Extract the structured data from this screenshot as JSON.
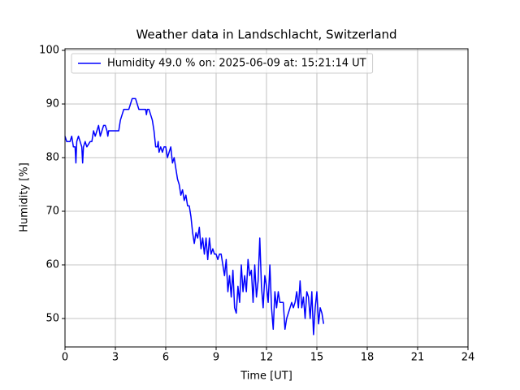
{
  "chart_data": {
    "type": "line",
    "title": "Weather data in Landschlacht, Switzerland",
    "xlabel": "Time [UT]",
    "ylabel": "Humidity [%]",
    "xlim": [
      0,
      24
    ],
    "xticks": [
      0,
      3,
      6,
      9,
      12,
      15,
      18,
      21,
      24
    ],
    "ylim": [
      44.7,
      100.3
    ],
    "yticks": [
      50,
      60,
      70,
      80,
      90,
      100
    ],
    "grid": true,
    "legend": "upper left",
    "x": [
      0.0,
      0.1,
      0.3,
      0.4,
      0.5,
      0.6,
      0.65,
      0.7,
      0.8,
      0.9,
      1.0,
      1.05,
      1.1,
      1.2,
      1.3,
      1.5,
      1.6,
      1.7,
      1.8,
      1.9,
      2.0,
      2.1,
      2.2,
      2.3,
      2.4,
      2.5,
      2.55,
      2.6,
      3.0,
      3.2,
      3.3,
      3.4,
      3.5,
      3.8,
      3.9,
      4.0,
      4.2,
      4.3,
      4.4,
      4.8,
      4.85,
      4.9,
      5.0,
      5.1,
      5.2,
      5.3,
      5.4,
      5.5,
      5.55,
      5.6,
      5.7,
      5.8,
      5.9,
      6.0,
      6.1,
      6.2,
      6.3,
      6.4,
      6.5,
      6.6,
      6.7,
      6.8,
      6.9,
      7.0,
      7.1,
      7.2,
      7.3,
      7.4,
      7.5,
      7.6,
      7.7,
      7.8,
      7.9,
      8.0,
      8.1,
      8.2,
      8.3,
      8.4,
      8.5,
      8.6,
      8.7,
      8.8,
      8.9,
      9.0,
      9.1,
      9.2,
      9.3,
      9.5,
      9.6,
      9.7,
      9.8,
      9.9,
      10.0,
      10.1,
      10.2,
      10.3,
      10.4,
      10.5,
      10.6,
      10.7,
      10.8,
      10.9,
      11.0,
      11.1,
      11.2,
      11.3,
      11.4,
      11.5,
      11.6,
      11.7,
      11.8,
      11.9,
      12.0,
      12.1,
      12.2,
      12.3,
      12.4,
      12.5,
      12.6,
      12.7,
      12.8,
      13.0,
      13.1,
      13.2,
      13.4,
      13.5,
      13.6,
      13.7,
      13.8,
      13.9,
      14.0,
      14.1,
      14.2,
      14.3,
      14.4,
      14.5,
      14.6,
      14.7,
      14.8,
      14.9,
      15.0,
      15.1,
      15.2,
      15.3,
      15.4
    ],
    "series": [
      {
        "name": "Humidity 49.0 % on: 2025-06-09 at: 15:21:14 UT",
        "color": "#0000ff",
        "values": [
          84,
          83,
          83,
          84,
          82,
          82,
          79,
          83,
          84,
          83,
          82,
          79,
          82,
          83,
          82,
          83,
          83,
          85,
          84,
          85,
          86,
          84,
          85,
          86,
          86,
          85,
          84,
          85,
          85,
          85,
          87,
          88,
          89,
          89,
          90,
          91,
          91,
          90,
          89,
          89,
          88,
          89,
          89,
          88,
          87,
          85,
          82,
          82,
          83,
          81,
          82,
          81,
          82,
          82,
          80,
          81,
          82,
          79,
          80,
          78,
          76,
          75,
          73,
          74,
          72,
          73,
          71,
          71,
          69,
          66,
          64,
          66,
          65,
          67,
          63,
          65,
          62,
          65,
          61,
          65,
          62,
          63,
          62,
          62,
          61,
          62,
          62,
          58,
          61,
          55,
          58,
          54,
          59,
          52,
          51,
          56,
          53,
          60,
          55,
          58,
          55,
          61,
          58,
          59,
          53,
          60,
          54,
          57,
          65,
          56,
          52,
          58,
          56,
          53,
          60,
          52,
          48,
          55,
          52,
          55,
          53,
          53,
          48,
          50,
          52,
          53,
          52,
          53,
          55,
          52,
          57,
          52,
          54,
          50,
          55,
          54,
          50,
          55,
          47,
          52,
          55,
          49,
          52,
          51,
          49
        ]
      }
    ]
  }
}
